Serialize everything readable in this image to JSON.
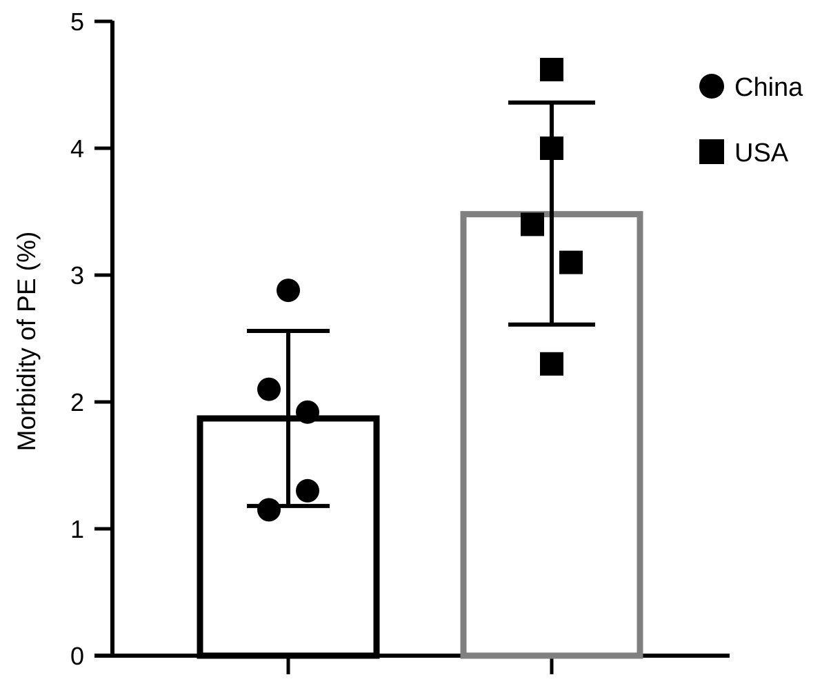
{
  "chart_data": {
    "type": "bar",
    "ylabel": "Morbidity of PE (%)",
    "xlabel": "",
    "ylim": [
      0,
      5
    ],
    "yticks": [
      "0",
      "1",
      "2",
      "3",
      "4",
      "5"
    ],
    "grid": false,
    "legend_position": "top-right",
    "series": [
      {
        "name": "China",
        "marker": "circle",
        "bar_color": "#000000",
        "mean": 1.87,
        "sd_upper": 2.56,
        "sd_lower": 1.18,
        "points": [
          2.88,
          2.1,
          1.92,
          1.3,
          1.15
        ]
      },
      {
        "name": "USA",
        "marker": "square",
        "bar_color": "#808080",
        "mean": 3.48,
        "sd_upper": 4.36,
        "sd_lower": 2.61,
        "points": [
          4.62,
          4.0,
          3.4,
          3.1,
          2.3
        ]
      }
    ]
  }
}
